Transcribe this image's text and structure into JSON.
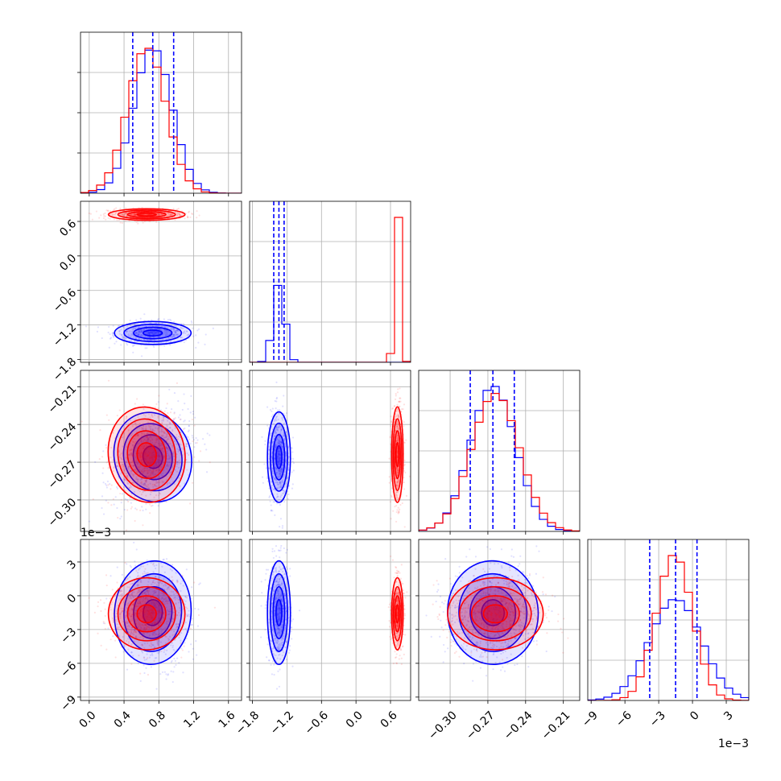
{
  "chart_data": {
    "type": "corner",
    "title": "",
    "grid": true,
    "colors": {
      "series_a": "#0000ff",
      "series_b": "#ff0000"
    },
    "params": [
      {
        "ticks": [
          0.0,
          0.4,
          0.8,
          1.2,
          1.6
        ],
        "tick_labels": [
          "0.0",
          "0.4",
          "0.8",
          "1.2",
          "1.6"
        ],
        "range": [
          -0.1,
          1.75
        ]
      },
      {
        "ticks": [
          -1.8,
          -1.2,
          -0.6,
          0.0,
          0.6
        ],
        "tick_labels": [
          "−1.8",
          "−1.2",
          "−0.6",
          "0.0",
          "0.6"
        ],
        "range": [
          -1.85,
          0.95
        ]
      },
      {
        "ticks": [
          -0.3,
          -0.27,
          -0.24,
          -0.21
        ],
        "tick_labels": [
          "−0.30",
          "−0.27",
          "−0.24",
          "−0.21"
        ],
        "range": [
          -0.325,
          -0.197
        ]
      },
      {
        "ticks": [
          -9,
          -6,
          -3,
          0,
          3
        ],
        "tick_labels": [
          "−9",
          "−6",
          "−3",
          "0",
          "3"
        ],
        "range": [
          -9.3,
          5.0
        ],
        "offset_label": "1e−3"
      }
    ],
    "series": [
      {
        "color": "#0000ff",
        "mean": [
          0.73,
          -1.34,
          -0.266,
          -1.5
        ],
        "sigma": [
          0.22,
          0.1,
          0.018,
          2.3
        ],
        "corr": [
          [
            0,
            1,
            0.0
          ],
          [
            0,
            2,
            0.45
          ],
          [
            0,
            3,
            -0.1
          ],
          [
            1,
            2,
            0.0
          ],
          [
            1,
            3,
            0.0
          ],
          [
            2,
            3,
            0.1
          ]
        ],
        "quantile_lines": [
          [
            0.5,
            0.73,
            0.97
          ],
          [
            -1.43,
            -1.34,
            -1.25
          ],
          [
            -0.284,
            -0.266,
            -0.249
          ],
          [
            -3.8,
            -1.5,
            0.4
          ]
        ]
      },
      {
        "color": "#ff0000",
        "mean": [
          0.66,
          0.72,
          -0.264,
          -1.6
        ],
        "sigma": [
          0.22,
          0.05,
          0.019,
          1.6
        ],
        "corr": [
          [
            0,
            1,
            0.0
          ],
          [
            0,
            2,
            0.2
          ],
          [
            0,
            3,
            0.0
          ],
          [
            1,
            2,
            0.0
          ],
          [
            1,
            3,
            0.0
          ],
          [
            2,
            3,
            0.0
          ]
        ]
      }
    ]
  }
}
